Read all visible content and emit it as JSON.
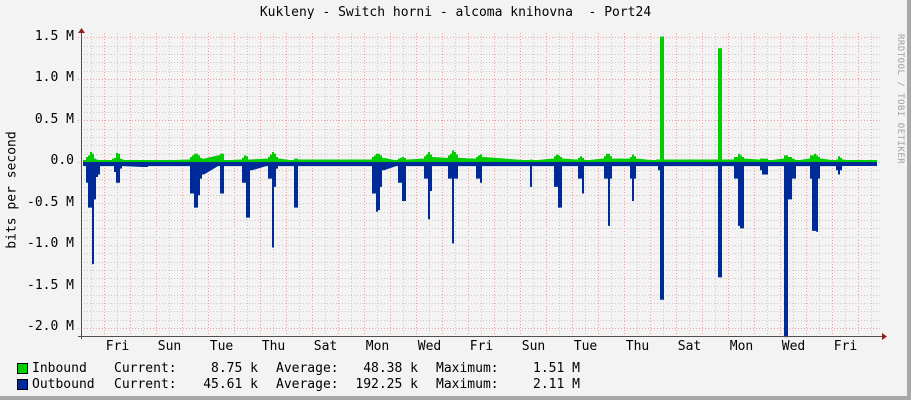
{
  "title": "Kukleny - Switch horni - alcoma knihovna  - Port24",
  "watermark": "RRDTOOL / TOBI OETIKER",
  "colors": {
    "inbound": "#00cc00",
    "outbound": "#002a97",
    "major_grid": "#e8a0a0",
    "minor_grid": "#c8c8c8",
    "axis": "#505050",
    "arrow": "#902020"
  },
  "chart_data": {
    "type": "area",
    "title": "Kukleny - Switch horni - alcoma knihovna  - Port24",
    "xlabel": "",
    "ylabel": "bits per second",
    "ylim": [
      -2.1,
      1.55
    ],
    "yticks": [
      {
        "v": 1.5,
        "label": "1.5 M"
      },
      {
        "v": 1.0,
        "label": "1.0 M"
      },
      {
        "v": 0.5,
        "label": "0.5 M"
      },
      {
        "v": 0.0,
        "label": "0.0"
      },
      {
        "v": -0.5,
        "label": "-0.5 M"
      },
      {
        "v": -1.0,
        "label": "-1.0 M"
      },
      {
        "v": -1.5,
        "label": "-1.5 M"
      },
      {
        "v": -2.0,
        "label": "-2.0 M"
      }
    ],
    "xticks": [
      "Fri",
      "Sun",
      "Tue",
      "Thu",
      "Sat",
      "Mon",
      "Wed",
      "Fri",
      "Sun",
      "Tue",
      "Thu",
      "Sat",
      "Mon",
      "Wed",
      "Fri"
    ],
    "grid": true,
    "legend_position": "bottom",
    "series": [
      {
        "name": "Inbound",
        "color": "#00cc00",
        "note": "values in M bits/s, plotted upward; points are [pixel_x, value]",
        "points": [
          [
            84,
            0.02
          ],
          [
            86,
            0.06
          ],
          [
            88,
            0.08
          ],
          [
            90,
            0.12
          ],
          [
            92,
            0.1
          ],
          [
            94,
            0.04
          ],
          [
            96,
            0.03
          ],
          [
            98,
            0.02
          ],
          [
            100,
            0.01
          ],
          [
            110,
            0.02
          ],
          [
            112,
            0.04
          ],
          [
            114,
            0.05
          ],
          [
            116,
            0.11
          ],
          [
            118,
            0.1
          ],
          [
            120,
            0.04
          ],
          [
            122,
            0.03
          ],
          [
            124,
            0.02
          ],
          [
            142,
            0.02
          ],
          [
            144,
            0.02
          ],
          [
            146,
            0.01
          ],
          [
            188,
            0.03
          ],
          [
            190,
            0.06
          ],
          [
            192,
            0.08
          ],
          [
            194,
            0.1
          ],
          [
            196,
            0.1
          ],
          [
            198,
            0.08
          ],
          [
            200,
            0.05
          ],
          [
            202,
            0.04
          ],
          [
            218,
            0.08
          ],
          [
            220,
            0.1
          ],
          [
            222,
            0.1
          ],
          [
            224,
            0.02
          ],
          [
            240,
            0.03
          ],
          [
            242,
            0.05
          ],
          [
            244,
            0.08
          ],
          [
            246,
            0.07
          ],
          [
            248,
            0.03
          ],
          [
            266,
            0.04
          ],
          [
            268,
            0.06
          ],
          [
            270,
            0.09
          ],
          [
            272,
            0.12
          ],
          [
            274,
            0.1
          ],
          [
            276,
            0.06
          ],
          [
            278,
            0.04
          ],
          [
            292,
            0.02
          ],
          [
            294,
            0.04
          ],
          [
            296,
            0.04
          ],
          [
            298,
            0.03
          ],
          [
            370,
            0.03
          ],
          [
            372,
            0.06
          ],
          [
            374,
            0.08
          ],
          [
            376,
            0.1
          ],
          [
            378,
            0.1
          ],
          [
            380,
            0.08
          ],
          [
            382,
            0.05
          ],
          [
            396,
            0.02
          ],
          [
            398,
            0.04
          ],
          [
            400,
            0.05
          ],
          [
            402,
            0.06
          ],
          [
            404,
            0.05
          ],
          [
            406,
            0.03
          ],
          [
            422,
            0.04
          ],
          [
            424,
            0.07
          ],
          [
            426,
            0.09
          ],
          [
            428,
            0.12
          ],
          [
            430,
            0.09
          ],
          [
            432,
            0.06
          ],
          [
            446,
            0.05
          ],
          [
            448,
            0.08
          ],
          [
            450,
            0.1
          ],
          [
            452,
            0.14
          ],
          [
            454,
            0.12
          ],
          [
            456,
            0.09
          ],
          [
            458,
            0.05
          ],
          [
            474,
            0.04
          ],
          [
            476,
            0.06
          ],
          [
            478,
            0.08
          ],
          [
            480,
            0.09
          ],
          [
            482,
            0.06
          ],
          [
            528,
            0.02
          ],
          [
            530,
            0.03
          ],
          [
            532,
            0.02
          ],
          [
            552,
            0.04
          ],
          [
            554,
            0.07
          ],
          [
            556,
            0.09
          ],
          [
            558,
            0.08
          ],
          [
            560,
            0.06
          ],
          [
            562,
            0.04
          ],
          [
            576,
            0.03
          ],
          [
            578,
            0.05
          ],
          [
            580,
            0.07
          ],
          [
            582,
            0.05
          ],
          [
            584,
            0.02
          ],
          [
            602,
            0.04
          ],
          [
            604,
            0.07
          ],
          [
            606,
            0.1
          ],
          [
            608,
            0.1
          ],
          [
            610,
            0.07
          ],
          [
            612,
            0.04
          ],
          [
            628,
            0.04
          ],
          [
            630,
            0.06
          ],
          [
            632,
            0.09
          ],
          [
            634,
            0.07
          ],
          [
            636,
            0.04
          ],
          [
            654,
            0.02
          ],
          [
            656,
            0.03
          ],
          [
            658,
            0.03
          ],
          [
            660,
            1.51
          ],
          [
            662,
            1.51
          ],
          [
            664,
            0.03
          ],
          [
            716,
            0.03
          ],
          [
            718,
            1.37
          ],
          [
            720,
            1.37
          ],
          [
            722,
            0.03
          ],
          [
            732,
            0.03
          ],
          [
            734,
            0.06
          ],
          [
            736,
            0.06
          ],
          [
            738,
            0.1
          ],
          [
            740,
            0.08
          ],
          [
            742,
            0.06
          ],
          [
            744,
            0.04
          ],
          [
            758,
            0.03
          ],
          [
            760,
            0.04
          ],
          [
            762,
            0.04
          ],
          [
            764,
            0.04
          ],
          [
            766,
            0.04
          ],
          [
            768,
            0.02
          ],
          [
            782,
            0.04
          ],
          [
            784,
            0.08
          ],
          [
            786,
            0.08
          ],
          [
            788,
            0.06
          ],
          [
            790,
            0.06
          ],
          [
            792,
            0.04
          ],
          [
            796,
            0.02
          ],
          [
            808,
            0.04
          ],
          [
            810,
            0.08
          ],
          [
            812,
            0.08
          ],
          [
            814,
            0.1
          ],
          [
            816,
            0.08
          ],
          [
            818,
            0.06
          ],
          [
            820,
            0.04
          ],
          [
            834,
            0.02
          ],
          [
            836,
            0.03
          ],
          [
            838,
            0.07
          ],
          [
            840,
            0.05
          ],
          [
            842,
            0.03
          ],
          [
            846,
            0.02
          ]
        ]
      },
      {
        "name": "Outbound",
        "color": "#002a97",
        "note": "values in M bits/s, plotted downward (negative); points are [pixel_x, value]",
        "points": [
          [
            84,
            0.05
          ],
          [
            86,
            0.25
          ],
          [
            88,
            0.55
          ],
          [
            90,
            0.55
          ],
          [
            92,
            1.23
          ],
          [
            94,
            0.45
          ],
          [
            96,
            0.18
          ],
          [
            98,
            0.15
          ],
          [
            100,
            0.05
          ],
          [
            112,
            0.05
          ],
          [
            114,
            0.12
          ],
          [
            116,
            0.25
          ],
          [
            118,
            0.25
          ],
          [
            120,
            0.08
          ],
          [
            122,
            0.05
          ],
          [
            142,
            0.06
          ],
          [
            144,
            0.06
          ],
          [
            146,
            0.06
          ],
          [
            148,
            0.05
          ],
          [
            150,
            0.05
          ],
          [
            188,
            0.05
          ],
          [
            190,
            0.38
          ],
          [
            192,
            0.38
          ],
          [
            194,
            0.55
          ],
          [
            196,
            0.55
          ],
          [
            198,
            0.4
          ],
          [
            200,
            0.2
          ],
          [
            202,
            0.15
          ],
          [
            218,
            0.05
          ],
          [
            220,
            0.38
          ],
          [
            222,
            0.38
          ],
          [
            224,
            0.05
          ],
          [
            240,
            0.05
          ],
          [
            242,
            0.25
          ],
          [
            244,
            0.25
          ],
          [
            246,
            0.67
          ],
          [
            248,
            0.67
          ],
          [
            250,
            0.1
          ],
          [
            266,
            0.05
          ],
          [
            268,
            0.2
          ],
          [
            270,
            0.2
          ],
          [
            272,
            1.03
          ],
          [
            274,
            0.3
          ],
          [
            276,
            0.08
          ],
          [
            278,
            0.05
          ],
          [
            292,
            0.05
          ],
          [
            294,
            0.55
          ],
          [
            296,
            0.55
          ],
          [
            298,
            0.05
          ],
          [
            370,
            0.05
          ],
          [
            372,
            0.38
          ],
          [
            374,
            0.38
          ],
          [
            376,
            0.6
          ],
          [
            378,
            0.58
          ],
          [
            380,
            0.3
          ],
          [
            382,
            0.1
          ],
          [
            396,
            0.05
          ],
          [
            398,
            0.25
          ],
          [
            400,
            0.25
          ],
          [
            402,
            0.47
          ],
          [
            404,
            0.47
          ],
          [
            406,
            0.05
          ],
          [
            422,
            0.05
          ],
          [
            424,
            0.2
          ],
          [
            426,
            0.2
          ],
          [
            428,
            0.69
          ],
          [
            430,
            0.35
          ],
          [
            432,
            0.05
          ],
          [
            446,
            0.05
          ],
          [
            448,
            0.2
          ],
          [
            450,
            0.2
          ],
          [
            452,
            0.98
          ],
          [
            454,
            0.2
          ],
          [
            456,
            0.2
          ],
          [
            458,
            0.05
          ],
          [
            474,
            0.05
          ],
          [
            476,
            0.2
          ],
          [
            478,
            0.2
          ],
          [
            480,
            0.25
          ],
          [
            482,
            0.05
          ],
          [
            528,
            0.05
          ],
          [
            530,
            0.3
          ],
          [
            532,
            0.05
          ],
          [
            552,
            0.05
          ],
          [
            554,
            0.3
          ],
          [
            556,
            0.3
          ],
          [
            558,
            0.55
          ],
          [
            560,
            0.55
          ],
          [
            562,
            0.05
          ],
          [
            576,
            0.05
          ],
          [
            578,
            0.2
          ],
          [
            580,
            0.2
          ],
          [
            582,
            0.38
          ],
          [
            584,
            0.05
          ],
          [
            602,
            0.05
          ],
          [
            604,
            0.2
          ],
          [
            606,
            0.2
          ],
          [
            608,
            0.77
          ],
          [
            610,
            0.2
          ],
          [
            612,
            0.05
          ],
          [
            628,
            0.05
          ],
          [
            630,
            0.2
          ],
          [
            632,
            0.47
          ],
          [
            634,
            0.2
          ],
          [
            636,
            0.05
          ],
          [
            654,
            0.05
          ],
          [
            656,
            0.05
          ],
          [
            658,
            0.1
          ],
          [
            660,
            1.66
          ],
          [
            662,
            1.66
          ],
          [
            664,
            0.05
          ],
          [
            716,
            0.05
          ],
          [
            718,
            1.39
          ],
          [
            720,
            1.39
          ],
          [
            722,
            0.05
          ],
          [
            732,
            0.05
          ],
          [
            734,
            0.2
          ],
          [
            736,
            0.2
          ],
          [
            738,
            0.77
          ],
          [
            740,
            0.8
          ],
          [
            742,
            0.8
          ],
          [
            744,
            0.05
          ],
          [
            758,
            0.05
          ],
          [
            760,
            0.1
          ],
          [
            762,
            0.15
          ],
          [
            764,
            0.15
          ],
          [
            766,
            0.15
          ],
          [
            768,
            0.05
          ],
          [
            782,
            0.05
          ],
          [
            784,
            2.11
          ],
          [
            786,
            2.11
          ],
          [
            788,
            0.45
          ],
          [
            790,
            0.45
          ],
          [
            792,
            0.2
          ],
          [
            794,
            0.2
          ],
          [
            796,
            0.05
          ],
          [
            808,
            0.05
          ],
          [
            810,
            0.2
          ],
          [
            812,
            0.83
          ],
          [
            814,
            0.83
          ],
          [
            816,
            0.84
          ],
          [
            818,
            0.2
          ],
          [
            820,
            0.05
          ],
          [
            834,
            0.05
          ],
          [
            836,
            0.1
          ],
          [
            838,
            0.15
          ],
          [
            840,
            0.1
          ],
          [
            842,
            0.05
          ]
        ]
      }
    ]
  },
  "legend": [
    {
      "name": "Inbound",
      "current_label": "Current:",
      "current": "8.75 k",
      "average_label": "Average:",
      "average": "48.38 k",
      "maximum_label": "Maximum:",
      "maximum": "1.51 M"
    },
    {
      "name": "Outbound",
      "current_label": "Current:",
      "current": "45.61 k",
      "average_label": "Average:",
      "average": "192.25 k",
      "maximum_label": "Maximum:",
      "maximum": "2.11 M"
    }
  ]
}
